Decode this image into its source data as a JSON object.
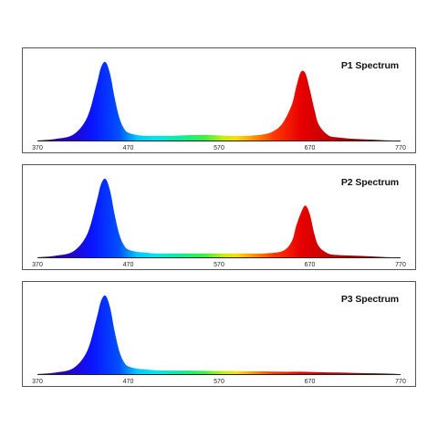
{
  "chart_data": [
    {
      "type": "area",
      "title": "P1 Spectrum",
      "x_ticks": [
        "370",
        "470",
        "570",
        "670",
        "770"
      ],
      "xlim": [
        370,
        770
      ],
      "grid": false,
      "series": [
        {
          "x": [
            370,
            390,
            410,
            425,
            435,
            440,
            445,
            450,
            455,
            460,
            465,
            470,
            480,
            490,
            500,
            520,
            540,
            560,
            580,
            600,
            620,
            630,
            640,
            650,
            655,
            660,
            665,
            670,
            675,
            680,
            690,
            700,
            720,
            740,
            760,
            770
          ],
          "y": [
            0.0,
            0.02,
            0.08,
            0.3,
            0.7,
            0.93,
            1.0,
            0.85,
            0.55,
            0.3,
            0.16,
            0.1,
            0.07,
            0.06,
            0.06,
            0.06,
            0.07,
            0.07,
            0.06,
            0.06,
            0.08,
            0.12,
            0.22,
            0.45,
            0.68,
            0.87,
            0.86,
            0.65,
            0.4,
            0.2,
            0.07,
            0.04,
            0.02,
            0.01,
            0.0,
            0.0
          ]
        }
      ]
    },
    {
      "type": "area",
      "title": "P2 Spectrum",
      "x_ticks": [
        "370",
        "470",
        "570",
        "670",
        "770"
      ],
      "xlim": [
        370,
        770
      ],
      "grid": false,
      "series": [
        {
          "x": [
            370,
            390,
            410,
            425,
            435,
            440,
            445,
            450,
            455,
            460,
            465,
            470,
            480,
            490,
            500,
            520,
            540,
            560,
            580,
            600,
            620,
            640,
            650,
            655,
            660,
            665,
            670,
            675,
            680,
            690,
            700,
            720,
            740,
            760,
            770
          ],
          "y": [
            0.0,
            0.02,
            0.08,
            0.3,
            0.7,
            0.93,
            1.0,
            0.85,
            0.55,
            0.3,
            0.16,
            0.1,
            0.07,
            0.06,
            0.05,
            0.05,
            0.05,
            0.05,
            0.05,
            0.05,
            0.05,
            0.08,
            0.2,
            0.4,
            0.56,
            0.66,
            0.55,
            0.3,
            0.14,
            0.05,
            0.03,
            0.02,
            0.01,
            0.0,
            0.0
          ]
        }
      ]
    },
    {
      "type": "area",
      "title": "P3 Spectrum",
      "x_ticks": [
        "370",
        "470",
        "570",
        "670",
        "770"
      ],
      "xlim": [
        370,
        770
      ],
      "grid": false,
      "series": [
        {
          "x": [
            370,
            390,
            410,
            425,
            435,
            440,
            445,
            450,
            455,
            460,
            465,
            470,
            480,
            490,
            500,
            520,
            540,
            560,
            580,
            600,
            620,
            640,
            660,
            680,
            700,
            720,
            740,
            760,
            770
          ],
          "y": [
            0.0,
            0.02,
            0.08,
            0.3,
            0.7,
            0.93,
            1.0,
            0.85,
            0.55,
            0.3,
            0.16,
            0.1,
            0.07,
            0.06,
            0.05,
            0.045,
            0.045,
            0.04,
            0.04,
            0.035,
            0.035,
            0.03,
            0.03,
            0.025,
            0.02,
            0.015,
            0.01,
            0.005,
            0.0
          ]
        }
      ]
    }
  ]
}
